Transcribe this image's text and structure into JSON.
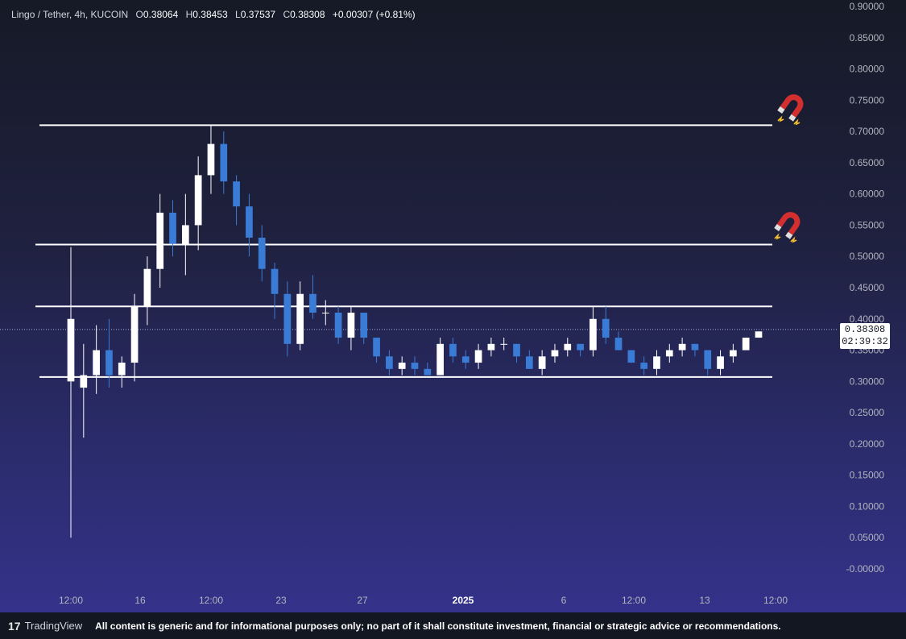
{
  "legend": {
    "symbol": "Lingo / Tether, 4h, KUCOIN",
    "open_label": "O",
    "open": "0.38064",
    "high_label": "H",
    "high": "0.38453",
    "low_label": "L",
    "low": "0.37537",
    "close_label": "C",
    "close": "0.38308",
    "change": "+0.00307 (+0.81%)"
  },
  "price_tag": {
    "price": "0.38308",
    "countdown": "02:39:32"
  },
  "icons": {
    "magnet_upper": "magnet-icon",
    "magnet_lower": "magnet-icon"
  },
  "footer": {
    "brand": "TradingView",
    "disclaimer": "All content is generic and for informational purposes only; no part of it shall constitute investment, financial or strategic advice or recommendations."
  },
  "colors": {
    "up_candle": "#ffffff",
    "down_candle": "#3a7bd5",
    "level_line": "#ffffff",
    "axis_text": "#b2b5be"
  },
  "chart_data": {
    "type": "candlestick",
    "ylim": [
      -0.0,
      0.9
    ],
    "y_ticks": [
      "0.90000",
      "0.85000",
      "0.80000",
      "0.75000",
      "0.70000",
      "0.65000",
      "0.60000",
      "0.55000",
      "0.50000",
      "0.45000",
      "0.40000",
      "0.35000",
      "0.30000",
      "0.25000",
      "0.20000",
      "0.15000",
      "0.10000",
      "0.05000",
      "-0.00000"
    ],
    "x_ticks": [
      "12:00",
      "16",
      "12:00",
      "23",
      "27",
      "2025",
      "6",
      "12:00",
      "13",
      "12:00"
    ],
    "horizontal_levels": [
      0.71,
      0.519,
      0.42,
      0.307
    ],
    "current_price": 0.38308,
    "candles": [
      {
        "o": 0.3,
        "h": 0.515,
        "l": 0.05,
        "c": 0.4
      },
      {
        "o": 0.29,
        "h": 0.36,
        "l": 0.21,
        "c": 0.31
      },
      {
        "o": 0.31,
        "h": 0.39,
        "l": 0.28,
        "c": 0.35
      },
      {
        "o": 0.35,
        "h": 0.4,
        "l": 0.29,
        "c": 0.31
      },
      {
        "o": 0.31,
        "h": 0.34,
        "l": 0.29,
        "c": 0.33
      },
      {
        "o": 0.33,
        "h": 0.44,
        "l": 0.3,
        "c": 0.42
      },
      {
        "o": 0.42,
        "h": 0.5,
        "l": 0.39,
        "c": 0.48
      },
      {
        "o": 0.48,
        "h": 0.6,
        "l": 0.45,
        "c": 0.57
      },
      {
        "o": 0.57,
        "h": 0.59,
        "l": 0.5,
        "c": 0.52
      },
      {
        "o": 0.52,
        "h": 0.6,
        "l": 0.47,
        "c": 0.55
      },
      {
        "o": 0.55,
        "h": 0.66,
        "l": 0.51,
        "c": 0.63
      },
      {
        "o": 0.63,
        "h": 0.71,
        "l": 0.6,
        "c": 0.68
      },
      {
        "o": 0.68,
        "h": 0.7,
        "l": 0.6,
        "c": 0.62
      },
      {
        "o": 0.62,
        "h": 0.63,
        "l": 0.55,
        "c": 0.58
      },
      {
        "o": 0.58,
        "h": 0.6,
        "l": 0.5,
        "c": 0.53
      },
      {
        "o": 0.53,
        "h": 0.55,
        "l": 0.46,
        "c": 0.48
      },
      {
        "o": 0.48,
        "h": 0.49,
        "l": 0.4,
        "c": 0.44
      },
      {
        "o": 0.44,
        "h": 0.46,
        "l": 0.34,
        "c": 0.36
      },
      {
        "o": 0.36,
        "h": 0.46,
        "l": 0.35,
        "c": 0.44
      },
      {
        "o": 0.44,
        "h": 0.47,
        "l": 0.4,
        "c": 0.41
      },
      {
        "o": 0.41,
        "h": 0.43,
        "l": 0.39,
        "c": 0.41
      },
      {
        "o": 0.41,
        "h": 0.42,
        "l": 0.36,
        "c": 0.37
      },
      {
        "o": 0.37,
        "h": 0.42,
        "l": 0.35,
        "c": 0.41
      },
      {
        "o": 0.41,
        "h": 0.41,
        "l": 0.36,
        "c": 0.37
      },
      {
        "o": 0.37,
        "h": 0.37,
        "l": 0.33,
        "c": 0.34
      },
      {
        "o": 0.34,
        "h": 0.35,
        "l": 0.31,
        "c": 0.32
      },
      {
        "o": 0.32,
        "h": 0.34,
        "l": 0.31,
        "c": 0.33
      },
      {
        "o": 0.33,
        "h": 0.34,
        "l": 0.31,
        "c": 0.32
      },
      {
        "o": 0.32,
        "h": 0.33,
        "l": 0.31,
        "c": 0.31
      },
      {
        "o": 0.31,
        "h": 0.37,
        "l": 0.31,
        "c": 0.36
      },
      {
        "o": 0.36,
        "h": 0.37,
        "l": 0.33,
        "c": 0.34
      },
      {
        "o": 0.34,
        "h": 0.35,
        "l": 0.32,
        "c": 0.33
      },
      {
        "o": 0.33,
        "h": 0.36,
        "l": 0.32,
        "c": 0.35
      },
      {
        "o": 0.35,
        "h": 0.37,
        "l": 0.34,
        "c": 0.36
      },
      {
        "o": 0.36,
        "h": 0.37,
        "l": 0.35,
        "c": 0.36
      },
      {
        "o": 0.36,
        "h": 0.36,
        "l": 0.33,
        "c": 0.34
      },
      {
        "o": 0.34,
        "h": 0.35,
        "l": 0.32,
        "c": 0.32
      },
      {
        "o": 0.32,
        "h": 0.35,
        "l": 0.31,
        "c": 0.34
      },
      {
        "o": 0.34,
        "h": 0.36,
        "l": 0.33,
        "c": 0.35
      },
      {
        "o": 0.35,
        "h": 0.37,
        "l": 0.34,
        "c": 0.36
      },
      {
        "o": 0.36,
        "h": 0.36,
        "l": 0.34,
        "c": 0.35
      },
      {
        "o": 0.35,
        "h": 0.42,
        "l": 0.34,
        "c": 0.4
      },
      {
        "o": 0.4,
        "h": 0.42,
        "l": 0.36,
        "c": 0.37
      },
      {
        "o": 0.37,
        "h": 0.38,
        "l": 0.35,
        "c": 0.35
      },
      {
        "o": 0.35,
        "h": 0.35,
        "l": 0.33,
        "c": 0.33
      },
      {
        "o": 0.33,
        "h": 0.34,
        "l": 0.31,
        "c": 0.32
      },
      {
        "o": 0.32,
        "h": 0.35,
        "l": 0.31,
        "c": 0.34
      },
      {
        "o": 0.34,
        "h": 0.36,
        "l": 0.33,
        "c": 0.35
      },
      {
        "o": 0.35,
        "h": 0.37,
        "l": 0.34,
        "c": 0.36
      },
      {
        "o": 0.36,
        "h": 0.36,
        "l": 0.34,
        "c": 0.35
      },
      {
        "o": 0.35,
        "h": 0.35,
        "l": 0.31,
        "c": 0.32
      },
      {
        "o": 0.32,
        "h": 0.35,
        "l": 0.31,
        "c": 0.34
      },
      {
        "o": 0.34,
        "h": 0.36,
        "l": 0.33,
        "c": 0.35
      },
      {
        "o": 0.35,
        "h": 0.37,
        "l": 0.35,
        "c": 0.37
      },
      {
        "o": 0.37,
        "h": 0.38,
        "l": 0.37,
        "c": 0.38
      }
    ]
  }
}
